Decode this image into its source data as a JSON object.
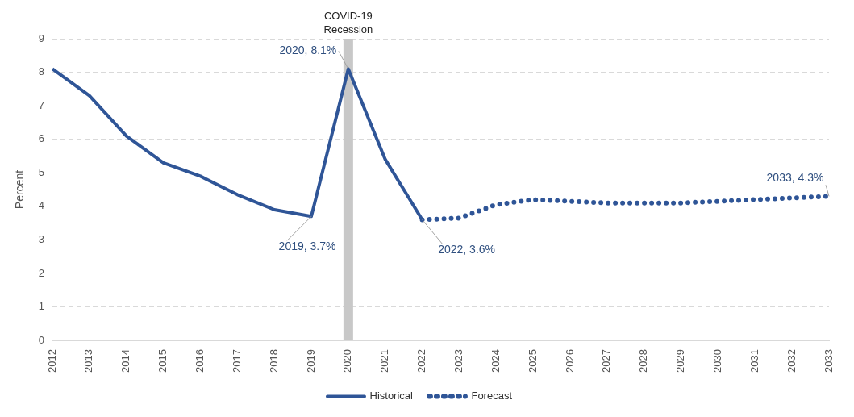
{
  "chart_data": {
    "type": "line",
    "ylabel": "Percent",
    "categories": [
      "2012",
      "2013",
      "2014",
      "2015",
      "2016",
      "2017",
      "2018",
      "2019",
      "2020",
      "2021",
      "2022",
      "2023",
      "2024",
      "2025",
      "2026",
      "2027",
      "2028",
      "2029",
      "2030",
      "2031",
      "2032",
      "2033"
    ],
    "series": [
      {
        "name": "Historical",
        "color": "#2f5597",
        "line_style": "solid",
        "values": [
          8.1,
          7.3,
          6.1,
          5.3,
          4.9,
          4.35,
          3.9,
          3.7,
          8.1,
          5.4,
          3.6,
          null,
          null,
          null,
          null,
          null,
          null,
          null,
          null,
          null,
          null,
          null
        ]
      },
      {
        "name": "Forecast",
        "color": "#2f5597",
        "line_style": "dotted",
        "values": [
          null,
          null,
          null,
          null,
          null,
          null,
          null,
          null,
          null,
          null,
          3.6,
          3.65,
          4.05,
          4.2,
          4.15,
          4.1,
          4.1,
          4.1,
          4.15,
          4.2,
          4.25,
          4.3
        ]
      }
    ],
    "ylim": [
      0,
      9
    ],
    "yticks": [
      0,
      1,
      2,
      3,
      4,
      5,
      6,
      7,
      8,
      9
    ],
    "grid": "y",
    "legend": "bottom",
    "marker": "none",
    "bands": [
      {
        "axis": "x",
        "from": "2020",
        "to": "2020",
        "label": "COVID-19 Recession",
        "color": "#c8c8c8"
      }
    ],
    "annotations": [
      {
        "text": "2019, 3.7%",
        "x": "2019",
        "y": 3.7
      },
      {
        "text": "2020, 8.1%",
        "x": "2020",
        "y": 8.1
      },
      {
        "text": "2022, 3.6%",
        "x": "2022",
        "y": 3.6
      },
      {
        "text": "2033, 4.3%",
        "x": "2033",
        "y": 4.3
      }
    ]
  }
}
